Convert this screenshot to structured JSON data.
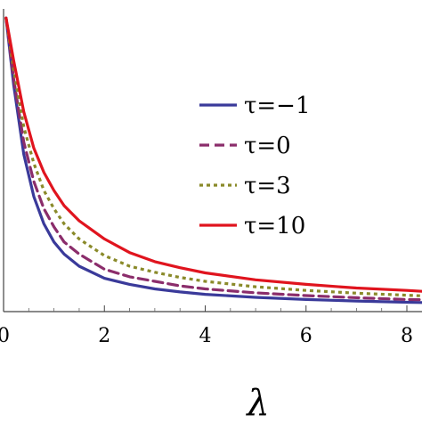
{
  "chart_data": {
    "type": "line",
    "title": "",
    "xlabel": "λ",
    "ylabel": "",
    "xlim": [
      0,
      8.3
    ],
    "ylim": [
      0,
      1
    ],
    "x_ticks": [
      0,
      2,
      4,
      6,
      8
    ],
    "x_tick_labels": [
      "0",
      "2",
      "4",
      "6",
      "8"
    ],
    "grid": false,
    "legend_position": "top-right",
    "series": [
      {
        "name": "τ=−1",
        "color": "#3a3a9a",
        "style": "solid",
        "x": [
          0.05,
          0.2,
          0.4,
          0.6,
          0.8,
          1.0,
          1.2,
          1.5,
          2.0,
          2.5,
          3.0,
          3.5,
          4.0,
          5.0,
          6.0,
          7.0,
          8.0,
          8.3
        ],
        "y": [
          0.97,
          0.75,
          0.52,
          0.38,
          0.29,
          0.23,
          0.19,
          0.15,
          0.11,
          0.09,
          0.075,
          0.065,
          0.057,
          0.047,
          0.04,
          0.035,
          0.031,
          0.03
        ]
      },
      {
        "name": "τ=0",
        "color": "#8b2d6b",
        "style": "dashed",
        "x": [
          0.05,
          0.2,
          0.4,
          0.6,
          0.8,
          1.0,
          1.2,
          1.5,
          2.0,
          2.5,
          3.0,
          3.5,
          4.0,
          5.0,
          6.0,
          7.0,
          8.0,
          8.3
        ],
        "y": [
          0.97,
          0.77,
          0.56,
          0.43,
          0.34,
          0.28,
          0.23,
          0.19,
          0.14,
          0.115,
          0.1,
          0.085,
          0.075,
          0.062,
          0.053,
          0.046,
          0.04,
          0.039
        ]
      },
      {
        "name": "τ=3",
        "color": "#8a8a2a",
        "style": "dotted",
        "x": [
          0.05,
          0.2,
          0.4,
          0.6,
          0.8,
          1.0,
          1.2,
          1.5,
          2.0,
          2.5,
          3.0,
          3.5,
          4.0,
          5.0,
          6.0,
          7.0,
          8.0,
          8.3
        ],
        "y": [
          0.97,
          0.8,
          0.61,
          0.49,
          0.4,
          0.34,
          0.29,
          0.24,
          0.185,
          0.15,
          0.13,
          0.113,
          0.1,
          0.082,
          0.07,
          0.061,
          0.054,
          0.052
        ]
      },
      {
        "name": "τ=10",
        "color": "#e0141e",
        "style": "solid",
        "x": [
          0.05,
          0.2,
          0.4,
          0.6,
          0.8,
          1.0,
          1.2,
          1.5,
          2.0,
          2.5,
          3.0,
          3.5,
          4.0,
          5.0,
          6.0,
          7.0,
          8.0,
          8.3
        ],
        "y": [
          0.97,
          0.83,
          0.66,
          0.54,
          0.46,
          0.4,
          0.35,
          0.3,
          0.24,
          0.195,
          0.165,
          0.145,
          0.128,
          0.105,
          0.09,
          0.078,
          0.07,
          0.067
        ]
      }
    ]
  }
}
